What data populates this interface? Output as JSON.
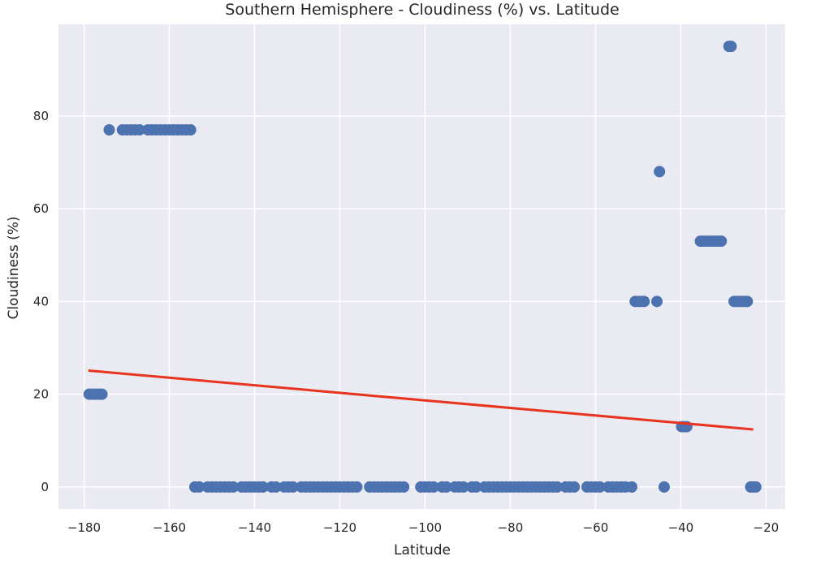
{
  "chart_data": {
    "type": "scatter",
    "title": "Southern Hemisphere - Cloudiness (%) vs. Latitude",
    "xlabel": "Latitude",
    "ylabel": "Cloudiness (%)",
    "xlim": [
      -186,
      -15.5
    ],
    "ylim": [
      -4.75,
      99.75
    ],
    "xticks": [
      -180,
      -160,
      -140,
      -120,
      -100,
      -80,
      -60,
      -40,
      -20
    ],
    "xtick_labels": [
      "−180",
      "−160",
      "−140",
      "−120",
      "−100",
      "−80",
      "−60",
      "−40",
      "−20"
    ],
    "yticks": [
      0,
      20,
      40,
      60,
      80
    ],
    "ytick_labels": [
      "0",
      "20",
      "40",
      "60",
      "80"
    ],
    "grid": true,
    "colors": {
      "background": "#EAEAF2",
      "grid": "#FFFFFF",
      "points": "#4C72B0",
      "regression": "#E8331F"
    },
    "series": [
      {
        "type": "scatter",
        "points": [
          {
            "x": -178.8,
            "y": 20
          },
          {
            "x": -178.2,
            "y": 20
          },
          {
            "x": -177.6,
            "y": 20
          },
          {
            "x": -177.0,
            "y": 20
          },
          {
            "x": -176.4,
            "y": 20
          },
          {
            "x": -175.8,
            "y": 20
          },
          {
            "x": -174.1,
            "y": 77
          },
          {
            "x": -171.0,
            "y": 77
          },
          {
            "x": -170.0,
            "y": 77
          },
          {
            "x": -169.0,
            "y": 77
          },
          {
            "x": -168.0,
            "y": 77
          },
          {
            "x": -167.0,
            "y": 77
          },
          {
            "x": -165.0,
            "y": 77
          },
          {
            "x": -164.0,
            "y": 77
          },
          {
            "x": -163.0,
            "y": 77
          },
          {
            "x": -162.0,
            "y": 77
          },
          {
            "x": -161.0,
            "y": 77
          },
          {
            "x": -160.0,
            "y": 77
          },
          {
            "x": -159.0,
            "y": 77
          },
          {
            "x": -158.0,
            "y": 77
          },
          {
            "x": -157.0,
            "y": 77
          },
          {
            "x": -156.0,
            "y": 77
          },
          {
            "x": -155.0,
            "y": 77
          },
          {
            "x": -154.0,
            "y": 0
          },
          {
            "x": -153.0,
            "y": 0
          },
          {
            "x": -151.0,
            "y": 0
          },
          {
            "x": -150.0,
            "y": 0
          },
          {
            "x": -149.0,
            "y": 0
          },
          {
            "x": -148.0,
            "y": 0
          },
          {
            "x": -147.0,
            "y": 0
          },
          {
            "x": -146.0,
            "y": 0
          },
          {
            "x": -145.0,
            "y": 0
          },
          {
            "x": -143.0,
            "y": 0
          },
          {
            "x": -142.0,
            "y": 0
          },
          {
            "x": -141.0,
            "y": 0
          },
          {
            "x": -140.0,
            "y": 0
          },
          {
            "x": -139.0,
            "y": 0
          },
          {
            "x": -138.0,
            "y": 0
          },
          {
            "x": -136.0,
            "y": 0
          },
          {
            "x": -135.0,
            "y": 0
          },
          {
            "x": -133.0,
            "y": 0
          },
          {
            "x": -132.0,
            "y": 0
          },
          {
            "x": -131.0,
            "y": 0
          },
          {
            "x": -129.0,
            "y": 0
          },
          {
            "x": -128.0,
            "y": 0
          },
          {
            "x": -127.0,
            "y": 0
          },
          {
            "x": -126.0,
            "y": 0
          },
          {
            "x": -125.0,
            "y": 0
          },
          {
            "x": -124.0,
            "y": 0
          },
          {
            "x": -123.0,
            "y": 0
          },
          {
            "x": -122.0,
            "y": 0
          },
          {
            "x": -121.0,
            "y": 0
          },
          {
            "x": -120.0,
            "y": 0
          },
          {
            "x": -119.0,
            "y": 0
          },
          {
            "x": -118.0,
            "y": 0
          },
          {
            "x": -117.0,
            "y": 0
          },
          {
            "x": -116.0,
            "y": 0
          },
          {
            "x": -113.0,
            "y": 0
          },
          {
            "x": -112.0,
            "y": 0
          },
          {
            "x": -111.0,
            "y": 0
          },
          {
            "x": -110.0,
            "y": 0
          },
          {
            "x": -109.0,
            "y": 0
          },
          {
            "x": -108.0,
            "y": 0
          },
          {
            "x": -107.0,
            "y": 0
          },
          {
            "x": -106.0,
            "y": 0
          },
          {
            "x": -105.0,
            "y": 0
          },
          {
            "x": -101.0,
            "y": 0
          },
          {
            "x": -100.0,
            "y": 0
          },
          {
            "x": -99.0,
            "y": 0
          },
          {
            "x": -98.0,
            "y": 0
          },
          {
            "x": -96.0,
            "y": 0
          },
          {
            "x": -95.0,
            "y": 0
          },
          {
            "x": -93.0,
            "y": 0
          },
          {
            "x": -92.0,
            "y": 0
          },
          {
            "x": -91.0,
            "y": 0
          },
          {
            "x": -89.0,
            "y": 0
          },
          {
            "x": -88.0,
            "y": 0
          },
          {
            "x": -86.0,
            "y": 0
          },
          {
            "x": -85.0,
            "y": 0
          },
          {
            "x": -84.0,
            "y": 0
          },
          {
            "x": -83.0,
            "y": 0
          },
          {
            "x": -82.0,
            "y": 0
          },
          {
            "x": -81.0,
            "y": 0
          },
          {
            "x": -80.0,
            "y": 0
          },
          {
            "x": -79.0,
            "y": 0
          },
          {
            "x": -78.0,
            "y": 0
          },
          {
            "x": -77.0,
            "y": 0
          },
          {
            "x": -76.0,
            "y": 0
          },
          {
            "x": -75.0,
            "y": 0
          },
          {
            "x": -74.0,
            "y": 0
          },
          {
            "x": -73.0,
            "y": 0
          },
          {
            "x": -72.0,
            "y": 0
          },
          {
            "x": -71.0,
            "y": 0
          },
          {
            "x": -70.0,
            "y": 0
          },
          {
            "x": -69.0,
            "y": 0
          },
          {
            "x": -67.0,
            "y": 0
          },
          {
            "x": -66.0,
            "y": 0
          },
          {
            "x": -65.0,
            "y": 0
          },
          {
            "x": -62.0,
            "y": 0
          },
          {
            "x": -61.0,
            "y": 0
          },
          {
            "x": -60.0,
            "y": 0
          },
          {
            "x": -59.0,
            "y": 0
          },
          {
            "x": -57.0,
            "y": 0
          },
          {
            "x": -56.0,
            "y": 0
          },
          {
            "x": -55.0,
            "y": 0
          },
          {
            "x": -54.0,
            "y": 0
          },
          {
            "x": -53.0,
            "y": 0
          },
          {
            "x": -51.5,
            "y": 0
          },
          {
            "x": -50.7,
            "y": 40
          },
          {
            "x": -50.0,
            "y": 40
          },
          {
            "x": -49.4,
            "y": 40
          },
          {
            "x": -48.6,
            "y": 40
          },
          {
            "x": -45.6,
            "y": 40
          },
          {
            "x": -45.0,
            "y": 68
          },
          {
            "x": -43.9,
            "y": 0
          },
          {
            "x": -39.8,
            "y": 13
          },
          {
            "x": -39.2,
            "y": 13
          },
          {
            "x": -38.6,
            "y": 13
          },
          {
            "x": -35.4,
            "y": 53
          },
          {
            "x": -34.7,
            "y": 53
          },
          {
            "x": -34.0,
            "y": 53
          },
          {
            "x": -33.3,
            "y": 53
          },
          {
            "x": -32.6,
            "y": 53
          },
          {
            "x": -31.9,
            "y": 53
          },
          {
            "x": -31.2,
            "y": 53
          },
          {
            "x": -30.5,
            "y": 53
          },
          {
            "x": -28.7,
            "y": 95
          },
          {
            "x": -28.2,
            "y": 95
          },
          {
            "x": -27.5,
            "y": 40
          },
          {
            "x": -26.8,
            "y": 40
          },
          {
            "x": -26.2,
            "y": 40
          },
          {
            "x": -25.6,
            "y": 40
          },
          {
            "x": -25.0,
            "y": 40
          },
          {
            "x": -24.4,
            "y": 40
          },
          {
            "x": -23.6,
            "y": 0
          },
          {
            "x": -23.0,
            "y": 0
          },
          {
            "x": -22.4,
            "y": 0
          }
        ]
      },
      {
        "type": "line",
        "points": [
          {
            "x": -179.0,
            "y": 25.1
          },
          {
            "x": -23.0,
            "y": 12.4
          }
        ]
      }
    ]
  }
}
